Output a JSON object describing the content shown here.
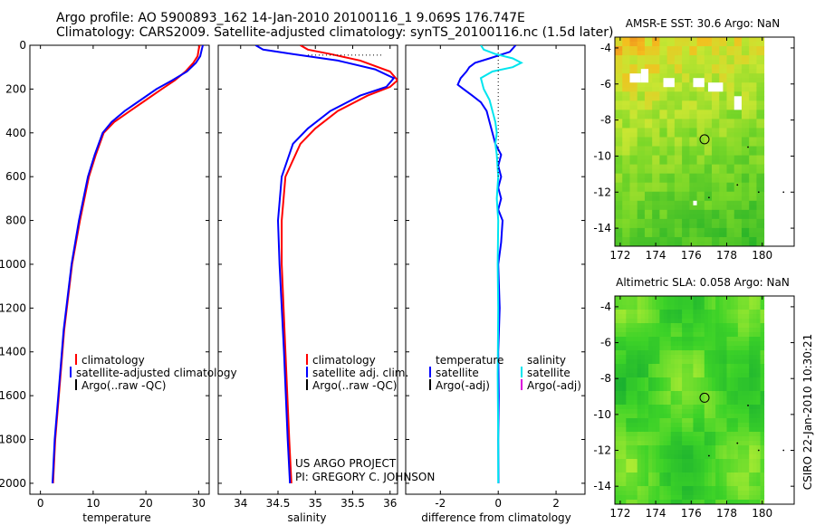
{
  "title_line1": "Argo profile: AO 5900893_162 14-Jan-2010 20100116_1 9.069S 176.747E",
  "title_line2": "Climatology: CARS2009. Satellite-adjusted climatology: synTS_20100116.nc (1.5d later)",
  "credit_line1": "US ARGO PROJECT",
  "credit_line2": "PI: GREGORY C. JOHNSON",
  "side_stamp": "CSIRO 22-Jan-2010 10:30:21",
  "colors": {
    "climatology": "#ff0000",
    "satellite": "#0000ff",
    "argo": "#000000",
    "satellite_salinity": "#00e5ee",
    "argo_salinity_adj": "#dd00dd"
  },
  "chart_data": [
    {
      "type": "line",
      "panel": "temperature",
      "xlabel": "temperature",
      "ylabel": "",
      "xlim": [
        -2,
        32
      ],
      "ylim": [
        2050,
        0
      ],
      "x_ticks": [
        0,
        10,
        20,
        30
      ],
      "y_ticks": [
        0,
        200,
        400,
        600,
        800,
        1000,
        1200,
        1400,
        1600,
        1800,
        2000
      ],
      "legend": [
        "climatology",
        "satellite-adjusted climatology",
        "Argo(..raw -QC)"
      ],
      "legend_position": "lower-center",
      "series": [
        {
          "name": "climatology",
          "color": "#ff0000",
          "points": [
            [
              30.2,
              0
            ],
            [
              30.0,
              20
            ],
            [
              29.8,
              50
            ],
            [
              29.0,
              80
            ],
            [
              27.5,
              120
            ],
            [
              25.5,
              160
            ],
            [
              23.0,
              200
            ],
            [
              20.0,
              250
            ],
            [
              17.0,
              300
            ],
            [
              14.0,
              350
            ],
            [
              12.0,
              400
            ],
            [
              10.5,
              500
            ],
            [
              9.2,
              600
            ],
            [
              7.5,
              800
            ],
            [
              6.0,
              1000
            ],
            [
              4.5,
              1300
            ],
            [
              3.5,
              1600
            ],
            [
              2.8,
              1800
            ],
            [
              2.4,
              2000
            ]
          ]
        },
        {
          "name": "satellite-adjusted climatology",
          "color": "#0000ff",
          "points": [
            [
              30.8,
              0
            ],
            [
              30.6,
              20
            ],
            [
              30.3,
              50
            ],
            [
              29.5,
              80
            ],
            [
              27.8,
              120
            ],
            [
              25.0,
              160
            ],
            [
              22.0,
              200
            ],
            [
              19.0,
              250
            ],
            [
              16.0,
              300
            ],
            [
              13.5,
              350
            ],
            [
              11.8,
              400
            ],
            [
              10.3,
              500
            ],
            [
              9.0,
              600
            ],
            [
              7.3,
              800
            ],
            [
              5.9,
              1000
            ],
            [
              4.4,
              1300
            ],
            [
              3.4,
              1600
            ],
            [
              2.7,
              1800
            ],
            [
              2.3,
              2000
            ]
          ]
        }
      ]
    },
    {
      "type": "line",
      "panel": "salinity",
      "xlabel": "salinity",
      "ylabel": "",
      "xlim": [
        33.7,
        36.1
      ],
      "ylim": [
        2050,
        0
      ],
      "x_ticks": [
        34,
        34.5,
        35,
        35.5,
        36
      ],
      "legend": [
        "climatology",
        "satellite adj. clim.",
        "Argo(..raw -QC)"
      ],
      "legend_position": "lower-right",
      "series": [
        {
          "name": "climatology",
          "color": "#ff0000",
          "points": [
            [
              34.8,
              0
            ],
            [
              34.9,
              20
            ],
            [
              35.2,
              40
            ],
            [
              35.6,
              70
            ],
            [
              36.0,
              120
            ],
            [
              36.1,
              160
            ],
            [
              36.0,
              190
            ],
            [
              35.7,
              230
            ],
            [
              35.3,
              300
            ],
            [
              35.0,
              380
            ],
            [
              34.8,
              450
            ],
            [
              34.6,
              600
            ],
            [
              34.55,
              800
            ],
            [
              34.55,
              1000
            ],
            [
              34.6,
              1400
            ],
            [
              34.65,
              1800
            ],
            [
              34.68,
              2000
            ]
          ]
        },
        {
          "name": "satellite adj. clim.",
          "color": "#0000ff",
          "points": [
            [
              34.2,
              0
            ],
            [
              34.3,
              20
            ],
            [
              34.7,
              40
            ],
            [
              35.3,
              70
            ],
            [
              35.8,
              110
            ],
            [
              36.05,
              150
            ],
            [
              35.95,
              190
            ],
            [
              35.6,
              230
            ],
            [
              35.2,
              300
            ],
            [
              34.9,
              380
            ],
            [
              34.7,
              450
            ],
            [
              34.55,
              600
            ],
            [
              34.5,
              800
            ],
            [
              34.52,
              1000
            ],
            [
              34.58,
              1400
            ],
            [
              34.63,
              1800
            ],
            [
              34.66,
              2000
            ]
          ]
        },
        {
          "name": "Argo(..raw -QC)",
          "color": "#000000",
          "style": "dotted",
          "points": [
            [
              34.9,
              45
            ],
            [
              35.1,
              45
            ],
            [
              35.3,
              45
            ],
            [
              35.5,
              45
            ],
            [
              35.7,
              45
            ],
            [
              35.9,
              45
            ]
          ]
        }
      ]
    },
    {
      "type": "line",
      "panel": "difference",
      "xlabel": "difference from climatology",
      "ylabel": "",
      "xlim": [
        -3.2,
        3.0
      ],
      "ylim": [
        2050,
        0
      ],
      "x_ticks": [
        -2,
        0,
        2
      ],
      "legend": [
        "temperature",
        "satellite",
        "Argo(-adj)",
        "salinity",
        "satellite",
        "Argo(-adj)"
      ],
      "legend_position": "lower-center",
      "series": [
        {
          "name": "temperature satellite",
          "color": "#0000ff",
          "points": [
            [
              0.6,
              0
            ],
            [
              0.4,
              30
            ],
            [
              -0.3,
              60
            ],
            [
              -0.8,
              80
            ],
            [
              -1.0,
              100
            ],
            [
              -1.1,
              120
            ],
            [
              -1.3,
              150
            ],
            [
              -1.4,
              180
            ],
            [
              -1.2,
              200
            ],
            [
              -0.9,
              230
            ],
            [
              -0.6,
              260
            ],
            [
              -0.4,
              300
            ],
            [
              -0.3,
              350
            ],
            [
              -0.2,
              400
            ],
            [
              -0.1,
              450
            ],
            [
              0.1,
              500
            ],
            [
              0.0,
              550
            ],
            [
              0.1,
              600
            ],
            [
              0.0,
              650
            ],
            [
              0.1,
              700
            ],
            [
              0.0,
              750
            ],
            [
              0.15,
              800
            ],
            [
              0.1,
              900
            ],
            [
              0.0,
              1000
            ],
            [
              0.05,
              1200
            ],
            [
              0.0,
              1400
            ],
            [
              0.02,
              1600
            ],
            [
              0.0,
              1800
            ],
            [
              0.01,
              2000
            ]
          ]
        },
        {
          "name": "salinity satellite",
          "color": "#00e5ee",
          "points": [
            [
              -0.6,
              0
            ],
            [
              -0.5,
              20
            ],
            [
              -0.1,
              40
            ],
            [
              0.5,
              60
            ],
            [
              0.8,
              80
            ],
            [
              0.5,
              100
            ],
            [
              -0.2,
              120
            ],
            [
              -0.6,
              150
            ],
            [
              -0.5,
              200
            ],
            [
              -0.3,
              250
            ],
            [
              -0.2,
              300
            ],
            [
              -0.1,
              350
            ],
            [
              -0.05,
              400
            ],
            [
              -0.1,
              450
            ],
            [
              -0.05,
              500
            ],
            [
              0.0,
              600
            ],
            [
              -0.05,
              700
            ],
            [
              0.0,
              800
            ],
            [
              -0.02,
              1000
            ],
            [
              0.0,
              1200
            ],
            [
              -0.02,
              1500
            ],
            [
              0.0,
              1800
            ],
            [
              0.0,
              2000
            ]
          ]
        },
        {
          "name": "zero reference",
          "color": "#000000",
          "style": "dotted",
          "points": [
            [
              0,
              0
            ],
            [
              0,
              600
            ]
          ]
        }
      ]
    },
    {
      "type": "heatmap",
      "panel": "sst",
      "title": "AMSR-E SST: 30.6 Argo: NaN",
      "xlim": [
        171.7,
        181.8
      ],
      "ylim": [
        -15,
        -3.4
      ],
      "x_ticks": [
        172,
        174,
        176,
        178,
        180
      ],
      "y_ticks": [
        -4,
        -6,
        -8,
        -10,
        -12,
        -14
      ],
      "marker": {
        "x": 176.75,
        "y": -9.07
      }
    },
    {
      "type": "heatmap",
      "panel": "sla",
      "title": "Altimetric SLA: 0.058 Argo: NaN",
      "xlim": [
        171.7,
        181.8
      ],
      "ylim": [
        -15,
        -3.4
      ],
      "x_ticks": [
        172,
        174,
        176,
        178,
        180
      ],
      "y_ticks": [
        -4,
        -6,
        -8,
        -10,
        -12,
        -14
      ],
      "marker": {
        "x": 176.75,
        "y": -9.07
      }
    }
  ]
}
